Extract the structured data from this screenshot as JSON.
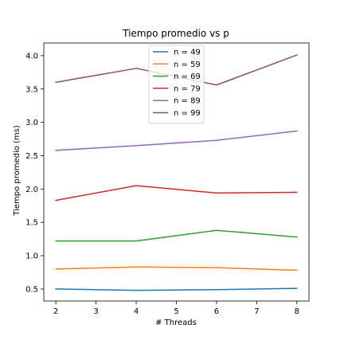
{
  "chart_data": {
    "type": "line",
    "title": "Tiempo promedio vs p",
    "xlabel": "# Threads",
    "ylabel": "Tiempo promedio (ms)",
    "x": [
      2,
      4,
      6,
      8
    ],
    "xlim": [
      1.7,
      8.3
    ],
    "ylim": [
      0.32,
      4.19
    ],
    "xticks": [
      2,
      3,
      4,
      5,
      6,
      7,
      8
    ],
    "yticks": [
      0.5,
      1.0,
      1.5,
      2.0,
      2.5,
      3.0,
      3.5,
      4.0
    ],
    "xtick_labels": [
      "2",
      "3",
      "4",
      "5",
      "6",
      "7",
      "8"
    ],
    "ytick_labels": [
      "0.5",
      "1.0",
      "1.5",
      "2.0",
      "2.5",
      "3.0",
      "3.5",
      "4.0"
    ],
    "legend_position": "top-center",
    "grid": false,
    "series": [
      {
        "name": "n = 49",
        "color": "#1f77b4",
        "values": [
          0.5,
          0.48,
          0.49,
          0.51
        ]
      },
      {
        "name": "n = 59",
        "color": "#ff7f0e",
        "values": [
          0.8,
          0.83,
          0.82,
          0.78
        ]
      },
      {
        "name": "n = 69",
        "color": "#2ca02c",
        "values": [
          1.22,
          1.22,
          1.38,
          1.28
        ]
      },
      {
        "name": "n = 79",
        "color": "#d62728",
        "values": [
          1.83,
          2.05,
          1.94,
          1.95
        ]
      },
      {
        "name": "n = 89",
        "color": "#9467bd",
        "values": [
          2.58,
          2.65,
          2.73,
          2.87
        ]
      },
      {
        "name": "n = 99",
        "color": "#8c564b",
        "values": [
          3.6,
          3.81,
          3.56,
          4.01
        ]
      }
    ]
  }
}
